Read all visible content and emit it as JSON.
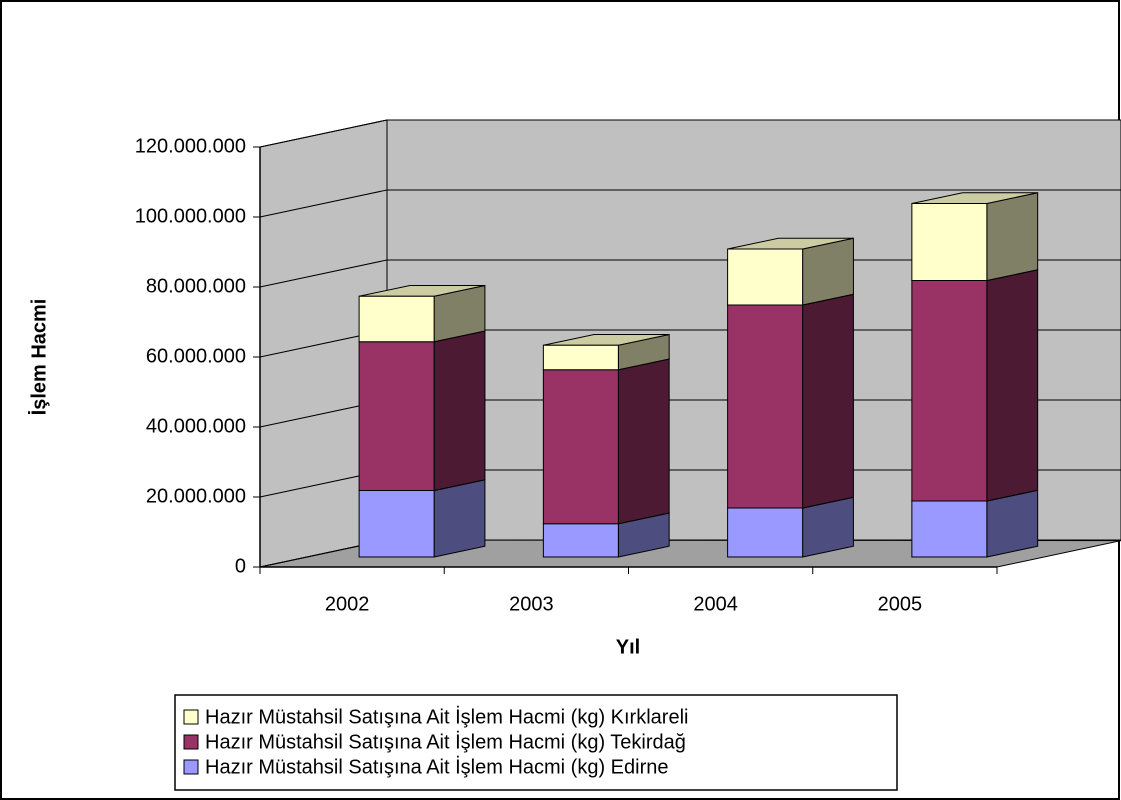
{
  "chart_data": {
    "type": "bar3d-stacked",
    "x_label": "Yıl",
    "y_label": "İşlem Hacmi",
    "categories": [
      "2002",
      "2003",
      "2004",
      "2005"
    ],
    "series": [
      {
        "name": "Hazır Müstahsil Satışına Ait İşlem Hacmi (kg) Edirne",
        "color": "#9999ff",
        "values": [
          19000000,
          9500000,
          14000000,
          16000000
        ]
      },
      {
        "name": "Hazır Müstahsil Satışına Ait İşlem Hacmi (kg) Tekirdağ",
        "color": "#993366",
        "values": [
          42500000,
          44000000,
          58000000,
          63000000
        ]
      },
      {
        "name": "Hazır Müstahsil Satışına Ait İşlem Hacmi (kg) Kırklareli",
        "color": "#ffffcc",
        "values": [
          13000000,
          7000000,
          16000000,
          22000000
        ]
      }
    ],
    "ylim": [
      0,
      120000000
    ],
    "yticks": [
      0,
      {
        "value": 20000000,
        "label": "20.000.000"
      },
      {
        "value": 40000000,
        "label": "40.000.000"
      },
      {
        "value": 60000000,
        "label": "60.000.000"
      },
      {
        "value": 80000000,
        "label": "80.000.000"
      },
      {
        "value": 100000000,
        "label": "100.000.000"
      },
      {
        "value": 120000000,
        "label": "120.000.000"
      }
    ],
    "grid": true,
    "legend": "bottom"
  }
}
